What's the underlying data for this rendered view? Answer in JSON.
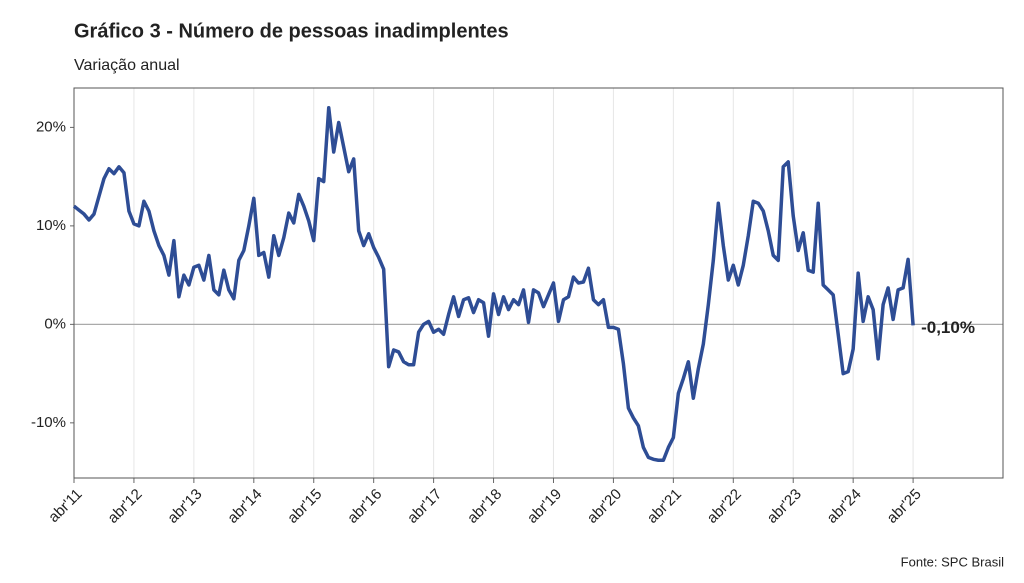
{
  "chart_data": {
    "type": "line",
    "title": "Gráfico 3 - Número de pessoas inadimplentes",
    "subtitle": "Variação anual",
    "source": "Fonte: SPC Brasil",
    "categories": [
      "abr'11",
      null,
      null,
      null,
      null,
      null,
      null,
      null,
      null,
      null,
      null,
      null,
      "abr'12",
      null,
      null,
      null,
      null,
      null,
      null,
      null,
      null,
      null,
      null,
      null,
      "abr'13",
      null,
      null,
      null,
      null,
      null,
      null,
      null,
      null,
      null,
      null,
      null,
      "abr'14",
      null,
      null,
      null,
      null,
      null,
      null,
      null,
      null,
      null,
      null,
      null,
      "abr'15",
      null,
      null,
      null,
      null,
      null,
      null,
      null,
      null,
      null,
      null,
      null,
      "abr'16",
      null,
      null,
      null,
      null,
      null,
      null,
      null,
      null,
      null,
      null,
      null,
      "abr'17",
      null,
      null,
      null,
      null,
      null,
      null,
      null,
      null,
      null,
      null,
      null,
      "abr'18",
      null,
      null,
      null,
      null,
      null,
      null,
      null,
      null,
      null,
      null,
      null,
      "abr'19",
      null,
      null,
      null,
      null,
      null,
      null,
      null,
      null,
      null,
      null,
      null,
      "abr'20",
      null,
      null,
      null,
      null,
      null,
      null,
      null,
      null,
      null,
      null,
      null,
      "abr'21",
      null,
      null,
      null,
      null,
      null,
      null,
      null,
      null,
      null,
      null,
      null,
      "abr'22",
      null,
      null,
      null,
      null,
      null,
      null,
      null,
      null,
      null,
      null,
      null,
      "abr'23",
      null,
      null,
      null,
      null,
      null,
      null,
      null,
      null,
      null,
      null,
      null,
      "abr'24",
      null,
      null,
      null,
      null,
      null,
      null,
      null,
      null,
      null,
      null,
      null,
      "abr'25",
      null,
      null,
      null,
      null,
      null,
      null,
      null,
      null,
      null,
      null,
      null,
      null,
      null,
      null,
      null,
      null,
      null,
      null
    ],
    "series": [
      {
        "name": "Número de pessoas inadimplentes",
        "color": "#2e4d95",
        "values": [
          12,
          11.6,
          11.2,
          10.6,
          11.2,
          13,
          14.8,
          15.8,
          15.3,
          16,
          15.4,
          11.5,
          10.2,
          10,
          12.5,
          11.5,
          9.5,
          8,
          7,
          5,
          8.5,
          2.8,
          5,
          4,
          5.8,
          6,
          4.5,
          7,
          3.5,
          3,
          5.5,
          3.5,
          2.6,
          6.5,
          7.5,
          10,
          12.8,
          7,
          7.3,
          4.8,
          9,
          7,
          8.8,
          11.3,
          10.3,
          13.2,
          12,
          10.5,
          8.5,
          14.8,
          14.5,
          22,
          17.5,
          20.5,
          18,
          15.5,
          16.8,
          9.5,
          8,
          9.2,
          7.8,
          6.8,
          5.6,
          -4.3,
          -2.6,
          -2.8,
          -3.8,
          -4.1,
          -4.1,
          -0.8,
          0,
          0.3,
          -0.8,
          -0.5,
          -1,
          1,
          2.8,
          0.8,
          2.5,
          2.7,
          1.2,
          2.5,
          2.2,
          -1.2,
          3.1,
          1,
          2.8,
          1.5,
          2.5,
          2,
          3.5,
          0.2,
          3.5,
          3.2,
          1.8,
          3,
          4.2,
          0.3,
          2.5,
          2.8,
          4.8,
          4.2,
          4.3,
          5.7,
          2.5,
          2,
          2.5,
          -0.3,
          -0.3,
          -0.5,
          -4,
          -8.5,
          -9.5,
          -10.3,
          -12.5,
          -13.5,
          -13.7,
          -13.8,
          -13.8,
          -12.5,
          -11.5,
          -7,
          -5.5,
          -3.8,
          -7.5,
          -4.5,
          -2,
          2,
          6.5,
          12.3,
          8,
          4.5,
          6,
          4,
          6,
          9,
          12.5,
          12.3,
          11.5,
          9.5,
          7,
          6.5,
          16,
          16.5,
          11,
          7.5,
          9.3,
          5.5,
          5.3,
          12.3,
          4,
          3.5,
          3,
          -1,
          -5,
          -4.8,
          -2.5,
          5.2,
          0.3,
          2.8,
          1.5,
          -3.5,
          2,
          3.7,
          0.5,
          3.5,
          3.7,
          6.6,
          -0.1,
          null,
          null,
          null,
          null,
          null,
          null,
          null,
          null,
          null,
          null,
          null,
          null,
          null,
          null,
          null,
          null,
          null,
          null
        ]
      }
    ],
    "ylim": [
      -15.6,
      24
    ],
    "yticks": [
      {
        "value": -10,
        "label": "-10%"
      },
      {
        "value": 0,
        "label": "0%"
      },
      {
        "value": 10,
        "label": "10%"
      },
      {
        "value": 20,
        "label": "20%"
      }
    ],
    "hline": 0,
    "xgrid": true,
    "annotations": [
      {
        "x": "abr'25",
        "y": -0.1,
        "label": "-0,10%"
      }
    ]
  }
}
